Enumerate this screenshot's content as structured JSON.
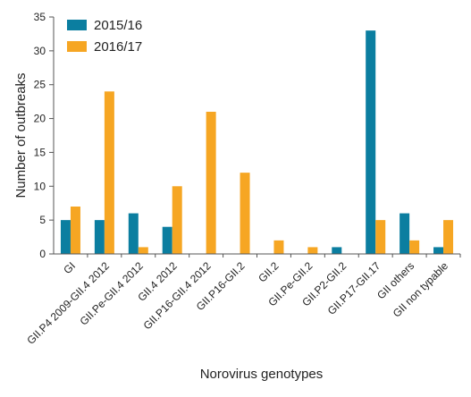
{
  "chart_data": {
    "type": "bar",
    "xlabel": "Norovirus genotypes",
    "ylabel": "Number of outbreaks",
    "ylim": [
      0,
      35
    ],
    "yticks": [
      0,
      5,
      10,
      15,
      20,
      25,
      30,
      35
    ],
    "legend_placement": "top-left",
    "categories": [
      "GI",
      "GII.P4 2009-GII.4 2012",
      "GII.Pe-GII.4 2012",
      "GII.4 2012",
      "GII.P16-GII.4 2012",
      "GII.P16-GII.2",
      "GII.2",
      "GII.Pe-GII.2",
      "GII.P2-GII.2",
      "GII.P17-GII.17",
      "GII others",
      "GII non typable"
    ],
    "series": [
      {
        "name": "2015/16",
        "color": "#0b7ea0",
        "values": [
          5,
          5,
          6,
          4,
          0,
          0,
          0,
          0,
          1,
          33,
          6,
          1
        ]
      },
      {
        "name": "2016/17",
        "color": "#f6a623",
        "values": [
          7,
          24,
          1,
          10,
          21,
          12,
          2,
          1,
          0,
          5,
          2,
          5
        ]
      }
    ]
  }
}
